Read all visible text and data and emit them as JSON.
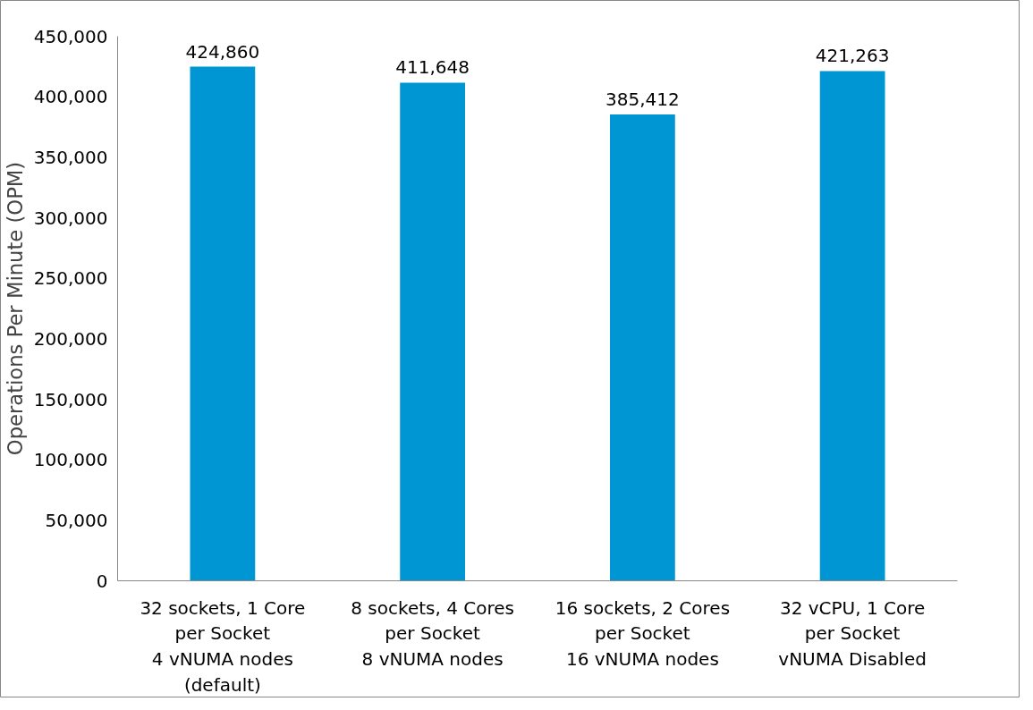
{
  "chart_data": {
    "type": "bar",
    "ylabel": "Operations Per Minute (OPM)",
    "categories": [
      "32 sockets, 1 Core\nper Socket\n4 vNUMA nodes\n(default)",
      "8 sockets, 4 Cores\nper Socket\n8 vNUMA nodes",
      "16 sockets, 2 Cores\nper Socket\n16 vNUMA nodes",
      "32 vCPU, 1 Core\nper Socket\nvNUMA Disabled"
    ],
    "values": [
      424860,
      411648,
      385412,
      421263
    ],
    "color": "#0095d3",
    "ylim": [
      0,
      450000
    ],
    "yticks": [
      {
        "value": 0,
        "label": "0"
      },
      {
        "value": 50000,
        "label": "50,000"
      },
      {
        "value": 100000,
        "label": "100,000"
      },
      {
        "value": 150000,
        "label": "150,000"
      },
      {
        "value": 200000,
        "label": "200,000"
      },
      {
        "value": 250000,
        "label": "250,000"
      },
      {
        "value": 300000,
        "label": "300,000"
      },
      {
        "value": 350000,
        "label": "350,000"
      },
      {
        "value": 400000,
        "label": "400,000"
      },
      {
        "value": 450000,
        "label": "450,000"
      }
    ],
    "value_labels": [
      "424,860",
      "411,648",
      "385,412",
      "421,263"
    ],
    "grid": false
  }
}
